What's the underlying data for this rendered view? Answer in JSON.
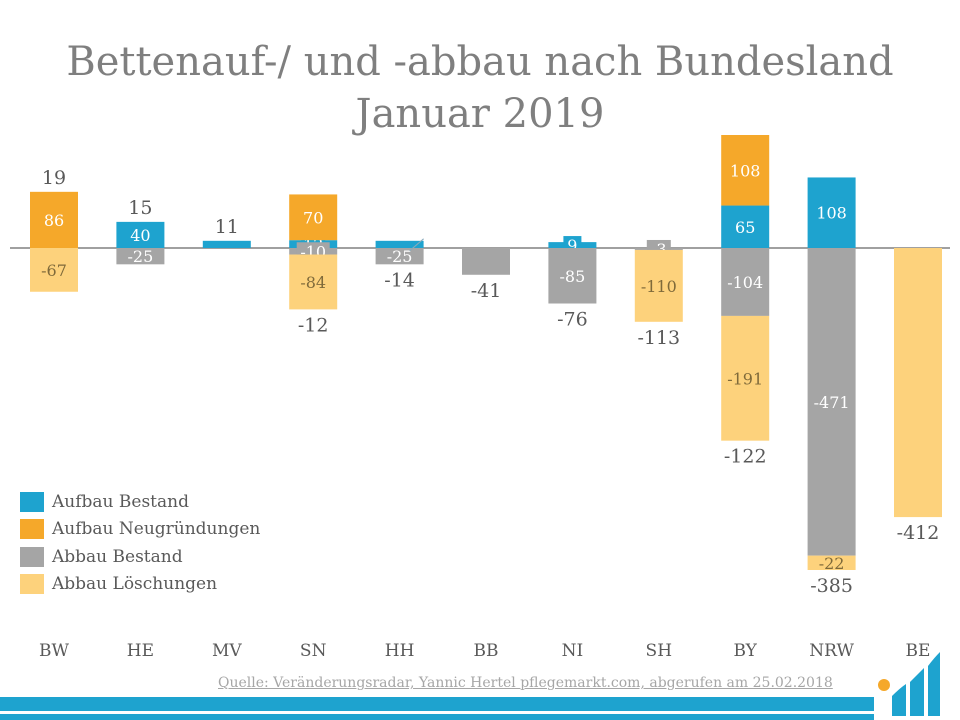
{
  "chart_data": {
    "type": "bar",
    "stacked": true,
    "title": "Bettenauf-/ und -abbau nach Bundesland",
    "subtitle": "Januar 2019",
    "categories": [
      "BW",
      "HE",
      "MV",
      "SN",
      "HH",
      "BB",
      "NI",
      "SH",
      "BY",
      "NRW",
      "BE"
    ],
    "series": [
      {
        "name": "Aufbau Bestand",
        "color": "#1ea3cf",
        "values": [
          0,
          40,
          11,
          12,
          11,
          0,
          9,
          0,
          65,
          108,
          0
        ]
      },
      {
        "name": "Aufbau Neugründungen",
        "color": "#f5a82a",
        "values": [
          86,
          0,
          0,
          70,
          0,
          0,
          0,
          0,
          108,
          0,
          0
        ]
      },
      {
        "name": "Abbau Bestand",
        "color": "#a5a5a5",
        "values": [
          0,
          -25,
          0,
          -10,
          -25,
          -41,
          -85,
          -3,
          -104,
          -471,
          0
        ]
      },
      {
        "name": "Abbau Löschungen",
        "color": "#fdd27c",
        "values": [
          -67,
          0,
          0,
          -84,
          0,
          0,
          0,
          -110,
          -191,
          -22,
          -412
        ]
      }
    ],
    "segment_labels": [
      [
        "",
        "40",
        "",
        "12",
        "",
        "",
        "9",
        "",
        "65",
        "108",
        ""
      ],
      [
        "86",
        "",
        "",
        "70",
        "",
        "",
        "",
        "",
        "108",
        "",
        ""
      ],
      [
        "",
        "-25",
        "",
        "-10",
        "-25",
        "",
        "-85",
        "-3",
        "-104",
        "-471",
        ""
      ],
      [
        "-67",
        "",
        "",
        "-84",
        "",
        "",
        "",
        "-110",
        "-191",
        "-22",
        ""
      ]
    ],
    "totals": [
      19,
      15,
      11,
      -12,
      -14,
      -41,
      -76,
      -113,
      -122,
      -385,
      -412
    ],
    "total_labels": [
      "19",
      "15",
      "11",
      "-12",
      "-14",
      "-41",
      "-76",
      "-113",
      "-122",
      "-385",
      "-412"
    ],
    "ylim": [
      -542,
      173
    ],
    "legend_position": "bottom-left",
    "grid": false
  },
  "source": "Quelle: Veränderungsradar, Yannic Hertel pflegemarkt.com, abgerufen am 25.02.2018",
  "colors": {
    "title": "#7f7f7f",
    "label_text": "#595959",
    "source_text": "#a6a6a6",
    "footer_bar": "#1ea3cf",
    "logo_dot": "#f5a82a"
  },
  "icons": {
    "logo": "pflegemarkt-logo-icon"
  }
}
